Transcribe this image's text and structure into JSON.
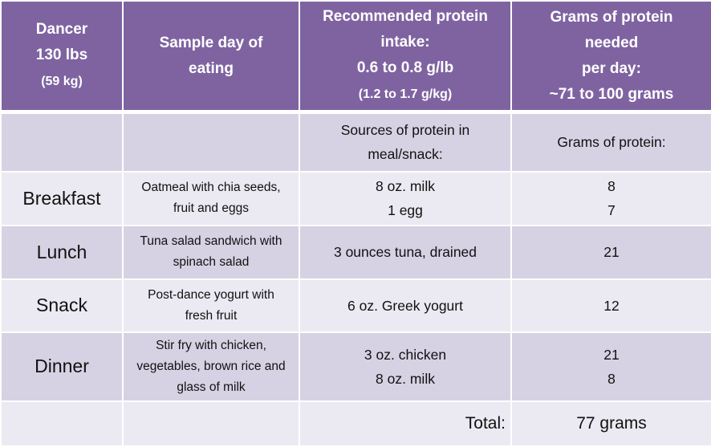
{
  "colors": {
    "header": "#7F63A1",
    "row_dark": "#D6D2E3",
    "row_light": "#EBE9F1"
  },
  "header": {
    "col1": [
      "Dancer",
      "130 lbs",
      "(59 kg)"
    ],
    "col2": [
      "Sample day of",
      "eating"
    ],
    "col3": [
      "Recommended protein",
      "intake:",
      "0.6 to 0.8 g/lb",
      "(1.2 to 1.7 g/kg)"
    ],
    "col4": [
      "Grams of protein",
      "needed",
      "per day:",
      "~71 to 100 grams"
    ]
  },
  "subheader": {
    "sources": [
      "Sources of protein in",
      "meal/snack:"
    ],
    "grams": "Grams of protein:"
  },
  "meals": [
    {
      "meal": "Breakfast",
      "desc": [
        "Oatmeal with chia seeds,",
        "fruit and eggs"
      ],
      "sources": [
        "8 oz. milk",
        "1 egg"
      ],
      "grams": [
        "8",
        "7"
      ]
    },
    {
      "meal": "Lunch",
      "desc": [
        "Tuna salad sandwich with",
        "spinach salad"
      ],
      "sources": [
        "3 ounces tuna, drained"
      ],
      "grams": [
        "21"
      ]
    },
    {
      "meal": "Snack",
      "desc": [
        "Post-dance yogurt with",
        "fresh fruit"
      ],
      "sources": [
        "6 oz. Greek yogurt"
      ],
      "grams": [
        "12"
      ]
    },
    {
      "meal": "Dinner",
      "desc": [
        "Stir fry with chicken,",
        "vegetables, brown rice and",
        "glass of milk"
      ],
      "sources": [
        "3 oz. chicken",
        "8 oz. milk"
      ],
      "grams": [
        "21",
        "8"
      ]
    }
  ],
  "total": {
    "label": "Total:",
    "value": "77 grams"
  }
}
